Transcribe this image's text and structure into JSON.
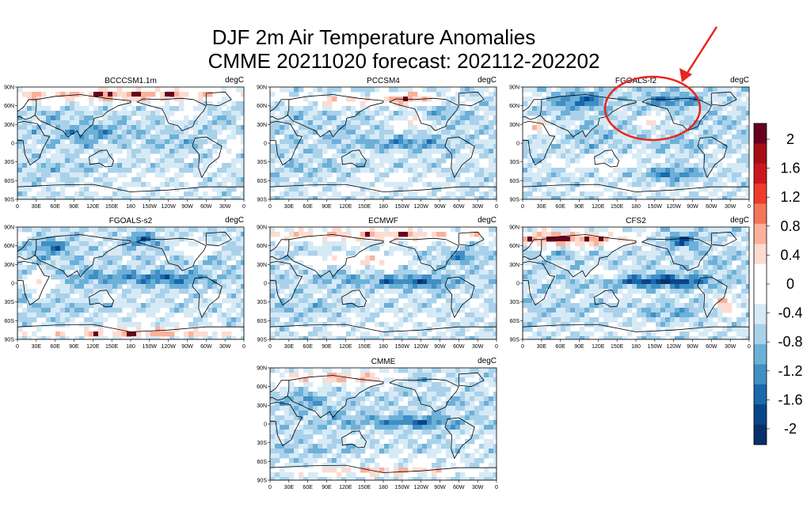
{
  "figure": {
    "title_line1": "DJF 2m Air Temperature Anomalies",
    "title_line2": "CMME 20211020 forecast: 202112-202202"
  },
  "panels": [
    {
      "name": "BCCCSM1.1m",
      "unit": "degC",
      "pattern": "bcc"
    },
    {
      "name": "PCCSM4",
      "unit": "degC",
      "pattern": "pcc"
    },
    {
      "name": "FGOALS-f2",
      "unit": "degC",
      "pattern": "fgf2"
    },
    {
      "name": "FGOALS-s2",
      "unit": "degC",
      "pattern": "fgs2"
    },
    {
      "name": "ECMWF",
      "unit": "degC",
      "pattern": "ecmwf"
    },
    {
      "name": "CFS2",
      "unit": "degC",
      "pattern": "cfs2"
    },
    {
      "name": "CMME",
      "unit": "degC",
      "pattern": "cmme"
    }
  ],
  "axes": {
    "lat_ticks": [
      "90N",
      "60N",
      "30N",
      "0",
      "30S",
      "60S",
      "90S"
    ],
    "lon_ticks": [
      "0",
      "30E",
      "60E",
      "90E",
      "120E",
      "150E",
      "180",
      "150W",
      "120W",
      "90W",
      "60W",
      "30W",
      "0"
    ]
  },
  "colorbar": {
    "labels": [
      "2",
      "1.6",
      "1.2",
      "0.8",
      "0.4",
      "0",
      "-0.4",
      "-0.8",
      "-1.2",
      "-1.6",
      "-2"
    ],
    "colors": [
      "#67001f",
      "#a50f15",
      "#cb181d",
      "#ef3b2c",
      "#f4765a",
      "#fbb09a",
      "#fddbd0",
      "#ffffff",
      "#ffffff",
      "#d6eaf6",
      "#a9d1ea",
      "#6cb0d8",
      "#3f8fc5",
      "#1b68ad",
      "#08468a",
      "#08306b"
    ]
  },
  "annotation": {
    "type": "red-ellipse-with-arrow",
    "color": "#e8261c",
    "target": "FGOALS-f2"
  }
}
